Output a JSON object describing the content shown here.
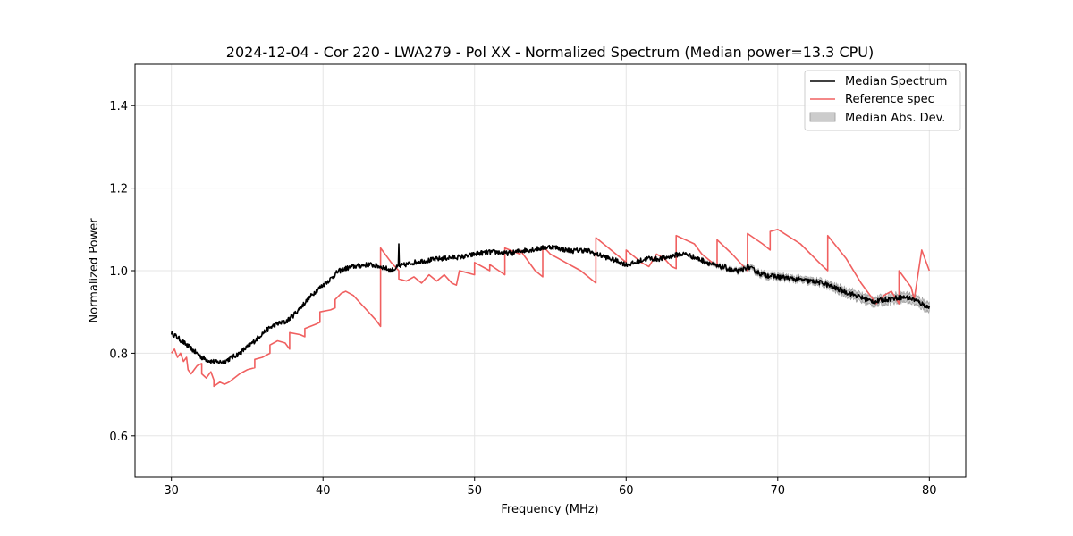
{
  "chart_data": {
    "type": "line",
    "title": "2024-12-04 - Cor 220 - LWA279 - Pol XX - Normalized Spectrum (Median power=13.3 CPU)",
    "xlabel": "Frequency (MHz)",
    "ylabel": "Normalized Power",
    "xlim": [
      27.6,
      82.4
    ],
    "ylim": [
      0.5,
      1.5
    ],
    "xticks": [
      30,
      40,
      50,
      60,
      70,
      80
    ],
    "yticks": [
      0.6,
      0.8,
      1.0,
      1.2,
      1.4
    ],
    "grid": true,
    "legend_position": "top-right",
    "legend": [
      "Median Spectrum",
      "Reference spec",
      "Median Abs. Dev."
    ],
    "colors": {
      "median": "#000000",
      "reference": "#f06060",
      "mad_fill": "#cccccc",
      "mad_edge": "#999999",
      "grid": "#e5e5e5"
    },
    "series": [
      {
        "name": "Median Spectrum",
        "x": [
          30,
          30.5,
          31,
          31.5,
          32,
          32.5,
          33,
          33.5,
          34,
          34.5,
          35,
          35.5,
          36,
          36.5,
          37,
          37.5,
          38,
          38.5,
          39,
          39.5,
          40,
          40.5,
          41,
          41.5,
          42,
          42.5,
          43,
          43.5,
          44,
          44.5,
          45,
          45.5,
          46,
          46.5,
          47,
          47.5,
          48,
          48.5,
          49,
          49.5,
          50,
          50.5,
          51,
          51.5,
          52,
          52.5,
          53,
          53.5,
          54,
          54.5,
          55,
          55.5,
          56,
          56.5,
          57,
          57.5,
          58,
          58.5,
          59,
          59.5,
          60,
          60.5,
          61,
          61.5,
          62,
          62.5,
          63,
          63.5,
          64,
          64.5,
          65,
          65.5,
          66,
          66.5,
          67,
          67.5,
          68,
          68.5,
          69,
          69.5,
          70,
          70.5,
          71,
          71.5,
          72,
          72.5,
          73,
          73.5,
          74,
          74.5,
          75,
          75.5,
          76,
          76.5,
          77,
          77.5,
          78,
          78.5,
          79,
          79.5,
          80
        ],
        "y": [
          0.85,
          0.835,
          0.82,
          0.805,
          0.79,
          0.782,
          0.778,
          0.78,
          0.79,
          0.8,
          0.815,
          0.83,
          0.848,
          0.862,
          0.872,
          0.875,
          0.89,
          0.91,
          0.93,
          0.95,
          0.965,
          0.98,
          0.998,
          1.005,
          1.01,
          1.012,
          1.015,
          1.012,
          1.008,
          1.0,
          1.01,
          1.015,
          1.02,
          1.023,
          1.025,
          1.028,
          1.03,
          1.032,
          1.033,
          1.035,
          1.04,
          1.043,
          1.045,
          1.045,
          1.042,
          1.043,
          1.048,
          1.05,
          1.052,
          1.055,
          1.058,
          1.055,
          1.05,
          1.048,
          1.05,
          1.048,
          1.04,
          1.035,
          1.028,
          1.022,
          1.015,
          1.018,
          1.025,
          1.03,
          1.028,
          1.03,
          1.035,
          1.04,
          1.04,
          1.032,
          1.025,
          1.018,
          1.01,
          1.008,
          1.0,
          0.998,
          1.01,
          1.0,
          0.99,
          0.988,
          0.985,
          0.983,
          0.98,
          0.978,
          0.975,
          0.973,
          0.97,
          0.962,
          0.955,
          0.948,
          0.942,
          0.935,
          0.928,
          0.925,
          0.93,
          0.932,
          0.935,
          0.935,
          0.93,
          0.92,
          0.91
        ]
      },
      {
        "name": "Reference spec",
        "x": [
          30,
          30.2,
          30.4,
          30.6,
          30.8,
          31.0,
          31.1,
          31.3,
          31.5,
          31.7,
          32.0,
          32.0,
          32.3,
          32.6,
          32.8,
          32.8,
          33.2,
          33.5,
          33.8,
          34.5,
          35.0,
          35.5,
          35.5,
          36.0,
          36.5,
          36.5,
          37.0,
          37.5,
          37.8,
          37.8,
          38.5,
          38.8,
          38.8,
          39.5,
          39.8,
          39.8,
          40.5,
          40.8,
          40.8,
          41.2,
          41.5,
          42.0,
          42.5,
          43.0,
          43.5,
          43.8,
          43.8,
          44.5,
          45.0,
          45.0,
          45.5,
          46.0,
          46.5,
          47.0,
          47.5,
          48.0,
          48.5,
          48.8,
          49.0,
          49.5,
          50.0,
          50.0,
          51.0,
          51.0,
          52.0,
          52.0,
          53.0,
          53.0,
          54.0,
          54.5,
          54.5,
          55.0,
          55.5,
          56.0,
          57.0,
          58.0,
          58.0,
          60.0,
          60.0,
          61.0,
          61.5,
          62.0,
          62.5,
          63.0,
          63.3,
          63.3,
          64.5,
          65.0,
          66.0,
          66.0,
          67.0,
          68.0,
          68.0,
          69.0,
          69.5,
          69.5,
          70.0,
          71.5,
          73.0,
          73.3,
          73.3,
          74.5,
          75.5,
          76.5,
          77.0,
          77.5,
          78.0,
          78.0,
          78.8,
          79.0,
          79.5,
          80.0
        ],
        "y": [
          0.8,
          0.81,
          0.79,
          0.8,
          0.78,
          0.79,
          0.76,
          0.75,
          0.76,
          0.77,
          0.775,
          0.75,
          0.74,
          0.755,
          0.735,
          0.72,
          0.73,
          0.725,
          0.73,
          0.75,
          0.76,
          0.765,
          0.785,
          0.79,
          0.8,
          0.82,
          0.83,
          0.825,
          0.81,
          0.85,
          0.845,
          0.84,
          0.86,
          0.87,
          0.875,
          0.9,
          0.905,
          0.91,
          0.93,
          0.945,
          0.95,
          0.94,
          0.92,
          0.9,
          0.88,
          0.865,
          1.055,
          1.02,
          1.0,
          0.98,
          0.975,
          0.985,
          0.97,
          0.99,
          0.975,
          0.99,
          0.97,
          0.965,
          1.0,
          0.995,
          0.99,
          1.02,
          1.0,
          1.015,
          0.99,
          1.055,
          1.04,
          1.05,
          1.0,
          0.985,
          1.06,
          1.04,
          1.03,
          1.02,
          1.0,
          0.97,
          1.08,
          1.02,
          1.05,
          1.02,
          1.01,
          1.04,
          1.03,
          1.01,
          1.005,
          1.085,
          1.065,
          1.04,
          1.01,
          1.075,
          1.04,
          1.0,
          1.09,
          1.065,
          1.05,
          1.095,
          1.1,
          1.065,
          1.01,
          1.0,
          1.085,
          1.03,
          0.97,
          0.92,
          0.94,
          0.95,
          0.92,
          1.0,
          0.96,
          0.93,
          1.05,
          1.0
        ]
      }
    ],
    "band": {
      "name": "Median Abs. Dev.",
      "x": [
        65,
        67,
        69,
        71,
        73,
        75,
        77,
        79,
        80
      ],
      "half_width": [
        0.003,
        0.004,
        0.006,
        0.006,
        0.007,
        0.01,
        0.01,
        0.011,
        0.011
      ]
    }
  }
}
